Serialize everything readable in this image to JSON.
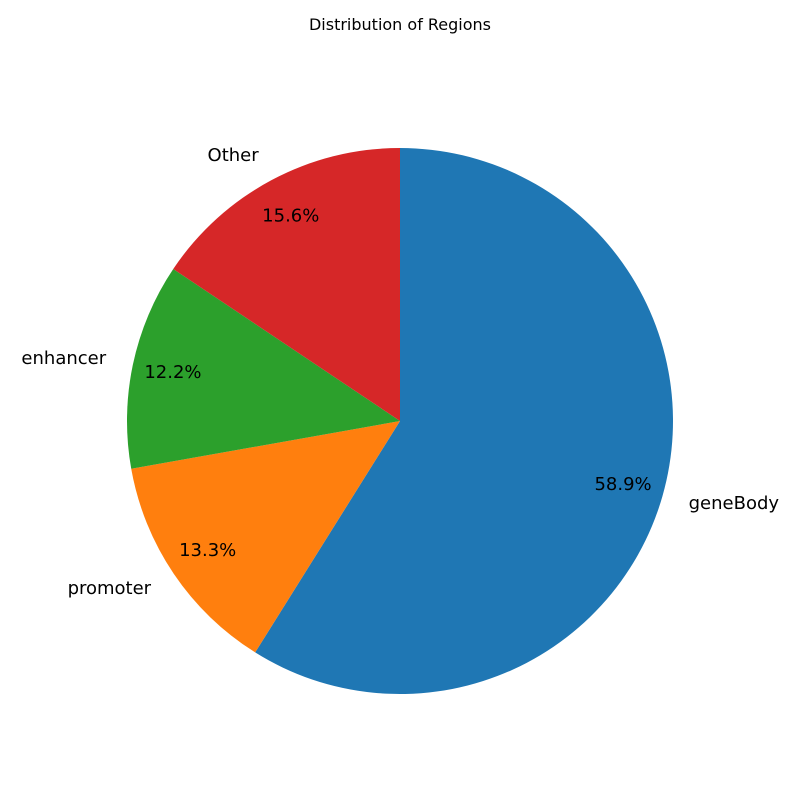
{
  "chart_data": {
    "type": "pie",
    "title": "Distribution of Regions",
    "slices": [
      {
        "label": "geneBody",
        "value": 58.9,
        "pct_label": "58.9%",
        "color": "#1f77b4"
      },
      {
        "label": "promoter",
        "value": 13.3,
        "pct_label": "13.3%",
        "color": "#ff7f0e"
      },
      {
        "label": "enhancer",
        "value": 12.2,
        "pct_label": "12.2%",
        "color": "#2ca02c"
      },
      {
        "label": "Other",
        "value": 15.6,
        "pct_label": "15.6%",
        "color": "#d62728"
      }
    ],
    "start_angle_deg": 90,
    "direction": "clockwise",
    "legend": "none"
  }
}
